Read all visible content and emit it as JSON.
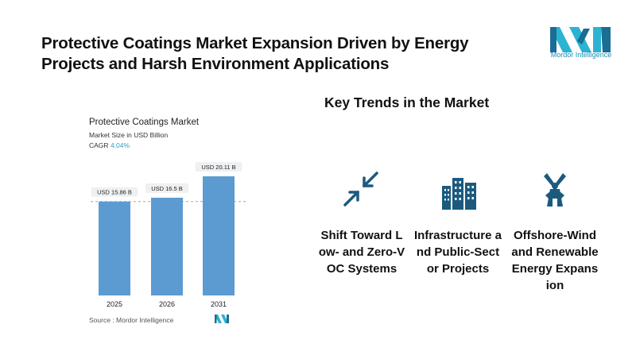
{
  "header": {
    "title": "Protective Coatings Market Expansion Driven by Energy Projects and Harsh Environment Applications",
    "logo_text": "Mordor Intelligence"
  },
  "chart": {
    "title": "Protective Coatings Market",
    "subtitle": "Market Size in USD Billion",
    "cagr_label": "CAGR",
    "cagr_value": "4.04%",
    "source": "Source :  Mordor Intelligence",
    "bar_color": "#5b9bd1",
    "callout_bg": "#eef0f2"
  },
  "chart_data": {
    "type": "bar",
    "categories": [
      "2025",
      "2026",
      "2031"
    ],
    "values": [
      15.86,
      16.5,
      20.11
    ],
    "value_labels": [
      "USD 15.86 B",
      "USD 16.5 B",
      "USD 20.11 B"
    ],
    "title": "Protective Coatings Market",
    "ylabel": "",
    "xlabel": "",
    "ylim": [
      0,
      20.11
    ],
    "grid": false
  },
  "trends": {
    "title": "Key Trends in the Market",
    "icon_color": "#1b5a7e",
    "items": [
      {
        "label": "Shift Toward Low- and Zero-VOC Systems",
        "icon": "compress-arrows-icon"
      },
      {
        "label": "Infrastructure and Public-Sector Projects",
        "icon": "buildings-icon"
      },
      {
        "label": "Offshore-Wind and Renewable Energy Expansion",
        "icon": "windmill-icon"
      }
    ]
  }
}
